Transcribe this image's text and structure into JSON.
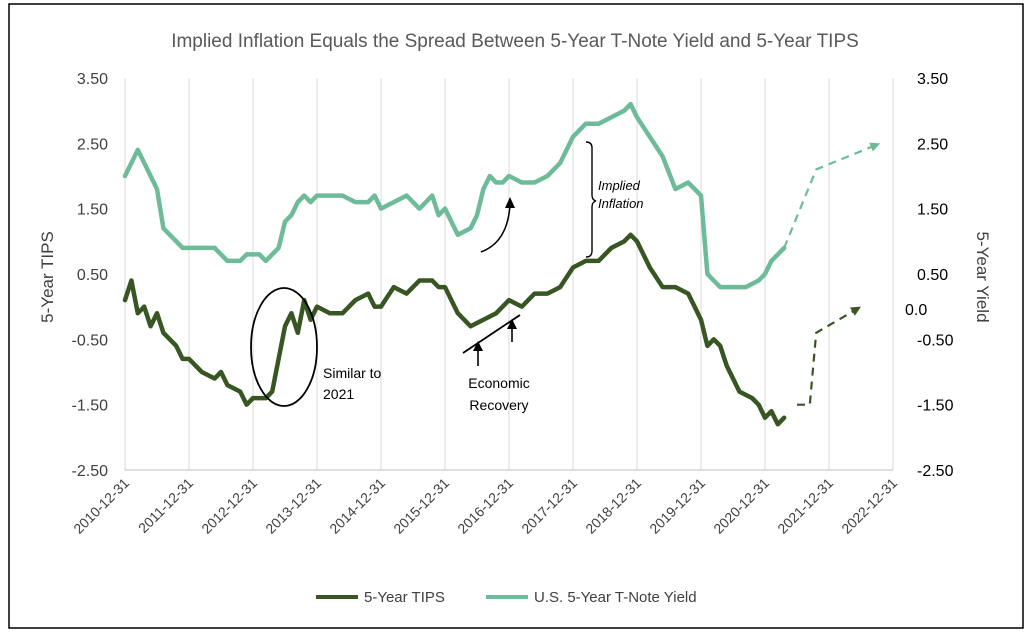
{
  "chart_data": {
    "type": "line",
    "title": "Implied Inflation Equals the Spread Between 5-Year T-Note Yield and 5-Year TIPS",
    "ylabel_left": "5-Year TIPS",
    "ylabel_right": "5-Year Yield",
    "ylim": [
      -2.5,
      3.5
    ],
    "y_ticks_left": [
      "3.50",
      "2.50",
      "1.50",
      "0.50",
      "-0.50",
      "-1.50",
      "-2.50"
    ],
    "y_ticks_right": [
      "3.50",
      "2.50",
      "1.50",
      "0.50",
      "0.0",
      "-0.50",
      "-1.50",
      "-2.50"
    ],
    "x_ticks": [
      "2010-12-31",
      "2011-12-31",
      "2012-12-31",
      "2013-12-31",
      "2014-12-31",
      "2015-12-31",
      "2016-12-31",
      "2017-12-31",
      "2018-12-31",
      "2019-12-31",
      "2020-12-31",
      "2021-12-31",
      "2022-12-31"
    ],
    "grid": "vertical",
    "legend_position": "bottom",
    "colors": {
      "tips": "#375623",
      "tnote": "#6dbb99"
    },
    "series": [
      {
        "name": "5-Year TIPS",
        "x": [
          2011.0,
          2011.1,
          2011.2,
          2011.3,
          2011.4,
          2011.5,
          2011.6,
          2011.7,
          2011.8,
          2011.9,
          2012.0,
          2012.2,
          2012.4,
          2012.5,
          2012.6,
          2012.8,
          2012.9,
          2013.0,
          2013.1,
          2013.2,
          2013.3,
          2013.4,
          2013.5,
          2013.6,
          2013.7,
          2013.8,
          2013.9,
          2014.0,
          2014.2,
          2014.4,
          2014.6,
          2014.8,
          2014.9,
          2015.0,
          2015.2,
          2015.4,
          2015.6,
          2015.8,
          2015.9,
          2016.0,
          2016.2,
          2016.4,
          2016.6,
          2016.8,
          2017.0,
          2017.2,
          2017.4,
          2017.6,
          2017.8,
          2018.0,
          2018.2,
          2018.4,
          2018.6,
          2018.8,
          2018.9,
          2019.0,
          2019.2,
          2019.4,
          2019.6,
          2019.8,
          2019.9,
          2020.0,
          2020.1,
          2020.2,
          2020.3,
          2020.4,
          2020.5,
          2020.6,
          2020.8,
          2020.9,
          2021.0,
          2021.1,
          2021.2,
          2021.3
        ],
        "y": [
          0.1,
          0.4,
          -0.1,
          0.0,
          -0.3,
          -0.1,
          -0.4,
          -0.5,
          -0.6,
          -0.8,
          -0.8,
          -1.0,
          -1.1,
          -1.0,
          -1.2,
          -1.3,
          -1.5,
          -1.4,
          -1.4,
          -1.4,
          -1.3,
          -0.8,
          -0.3,
          -0.1,
          -0.4,
          0.1,
          -0.2,
          0.0,
          -0.1,
          -0.1,
          0.1,
          0.2,
          0.0,
          0.0,
          0.3,
          0.2,
          0.4,
          0.4,
          0.3,
          0.3,
          -0.1,
          -0.3,
          -0.2,
          -0.1,
          0.1,
          0.0,
          0.2,
          0.2,
          0.3,
          0.6,
          0.7,
          0.7,
          0.9,
          1.0,
          1.1,
          1.0,
          0.6,
          0.3,
          0.3,
          0.2,
          0.0,
          -0.2,
          -0.6,
          -0.5,
          -0.6,
          -0.9,
          -1.1,
          -1.3,
          -1.4,
          -1.5,
          -1.7,
          -1.6,
          -1.8,
          -1.7
        ]
      },
      {
        "name": "U.S. 5-Year T-Note Yield",
        "x": [
          2011.0,
          2011.1,
          2011.2,
          2011.3,
          2011.4,
          2011.5,
          2011.6,
          2011.8,
          2011.9,
          2012.0,
          2012.2,
          2012.4,
          2012.5,
          2012.6,
          2012.8,
          2012.9,
          2013.0,
          2013.1,
          2013.2,
          2013.3,
          2013.4,
          2013.5,
          2013.6,
          2013.7,
          2013.8,
          2013.9,
          2014.0,
          2014.2,
          2014.4,
          2014.6,
          2014.8,
          2014.9,
          2015.0,
          2015.2,
          2015.4,
          2015.6,
          2015.8,
          2015.9,
          2016.0,
          2016.2,
          2016.4,
          2016.5,
          2016.6,
          2016.7,
          2016.8,
          2016.9,
          2017.0,
          2017.2,
          2017.4,
          2017.6,
          2017.8,
          2018.0,
          2018.2,
          2018.4,
          2018.6,
          2018.8,
          2018.9,
          2019.0,
          2019.2,
          2019.4,
          2019.6,
          2019.8,
          2019.9,
          2020.0,
          2020.1,
          2020.2,
          2020.3,
          2020.5,
          2020.7,
          2020.9,
          2021.0,
          2021.1,
          2021.2,
          2021.3
        ],
        "y": [
          2.0,
          2.2,
          2.4,
          2.2,
          2.0,
          1.8,
          1.2,
          1.0,
          0.9,
          0.9,
          0.9,
          0.9,
          0.8,
          0.7,
          0.7,
          0.8,
          0.8,
          0.8,
          0.7,
          0.8,
          0.9,
          1.3,
          1.4,
          1.6,
          1.7,
          1.6,
          1.7,
          1.7,
          1.7,
          1.6,
          1.6,
          1.7,
          1.5,
          1.6,
          1.7,
          1.5,
          1.7,
          1.4,
          1.5,
          1.1,
          1.2,
          1.4,
          1.8,
          2.0,
          1.9,
          1.9,
          2.0,
          1.9,
          1.9,
          2.0,
          2.2,
          2.6,
          2.8,
          2.8,
          2.9,
          3.0,
          3.1,
          2.9,
          2.6,
          2.3,
          1.8,
          1.9,
          1.8,
          1.7,
          0.5,
          0.4,
          0.3,
          0.3,
          0.3,
          0.4,
          0.5,
          0.7,
          0.8,
          0.9
        ]
      }
    ],
    "projections": [
      {
        "name": "5-Year TIPS",
        "x": [
          2021.5,
          2021.7,
          2021.8,
          2022.5
        ],
        "y": [
          -1.5,
          -1.5,
          -0.4,
          0.0
        ]
      },
      {
        "name": "U.S. 5-Year T-Note Yield",
        "x": [
          2021.3,
          2021.8,
          2022.8
        ],
        "y": [
          0.9,
          2.1,
          2.5
        ]
      }
    ],
    "annotations": {
      "similar_1": "Similar to",
      "similar_2": "2021",
      "recovery_1": "Economic",
      "recovery_2": "Recovery",
      "implied_1": "Implied",
      "implied_2": "Inflation"
    }
  }
}
